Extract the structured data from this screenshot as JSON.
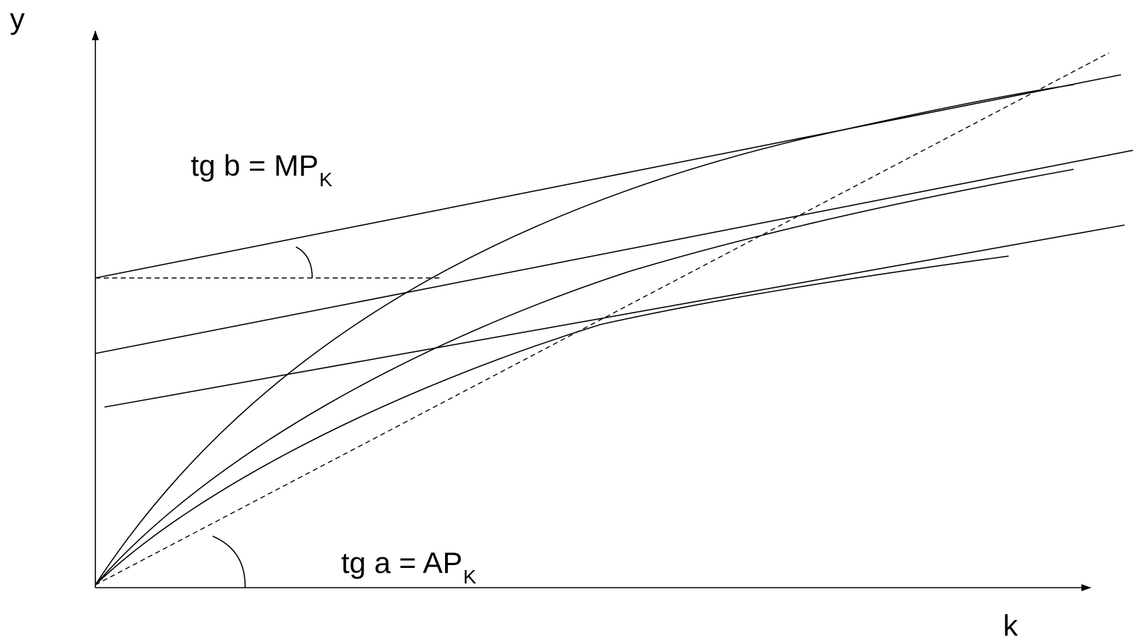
{
  "axes": {
    "y_label": "y",
    "x_label": "k"
  },
  "annotations": {
    "marginal_product": {
      "text": "tg b = MP",
      "subscript": "K"
    },
    "average_product": {
      "text": "tg a = AP",
      "subscript": "K"
    }
  },
  "style": {
    "line_color": "#000000",
    "background": "#ffffff"
  }
}
